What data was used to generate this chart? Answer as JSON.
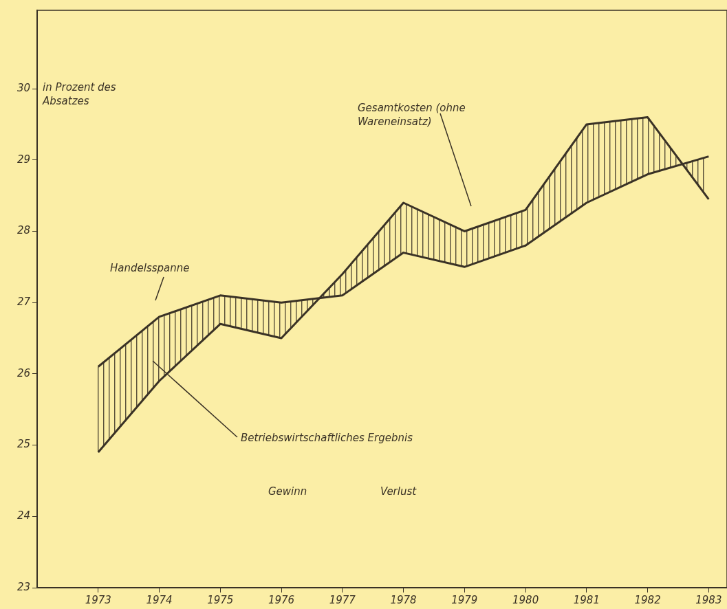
{
  "chart_data": {
    "type": "line",
    "ylabel": "in Prozent des Absatzes",
    "x": [
      1973,
      1974,
      1975,
      1976,
      1977,
      1978,
      1979,
      1980,
      1981,
      1982,
      1983
    ],
    "series": [
      {
        "name": "Handelsspanne",
        "color": "#3a3226",
        "values": [
          26.1,
          26.8,
          27.1,
          27.0,
          27.1,
          27.7,
          27.5,
          27.8,
          28.4,
          28.8,
          29.05
        ]
      },
      {
        "name": "Gesamtkosten (ohne Wareneinsatz)",
        "color": "#3a3226",
        "values": [
          24.9,
          25.9,
          26.7,
          26.5,
          27.4,
          28.4,
          28.0,
          28.3,
          29.5,
          29.6,
          28.45
        ]
      }
    ],
    "xlim": [
      1972,
      1983.3
    ],
    "xticks": [
      1973,
      1974,
      1975,
      1976,
      1977,
      1978,
      1979,
      1980,
      1981,
      1982,
      1983
    ],
    "ylim": [
      23,
      31.1
    ],
    "yticks": [
      23,
      24,
      25,
      26,
      27,
      28,
      29,
      30
    ],
    "annotations": [
      "Betriebswirtschaftliches Ergebnis",
      "Gewinn",
      "Verlust"
    ],
    "grid": false,
    "legend": false,
    "marker": "none",
    "line_style": "solid"
  }
}
